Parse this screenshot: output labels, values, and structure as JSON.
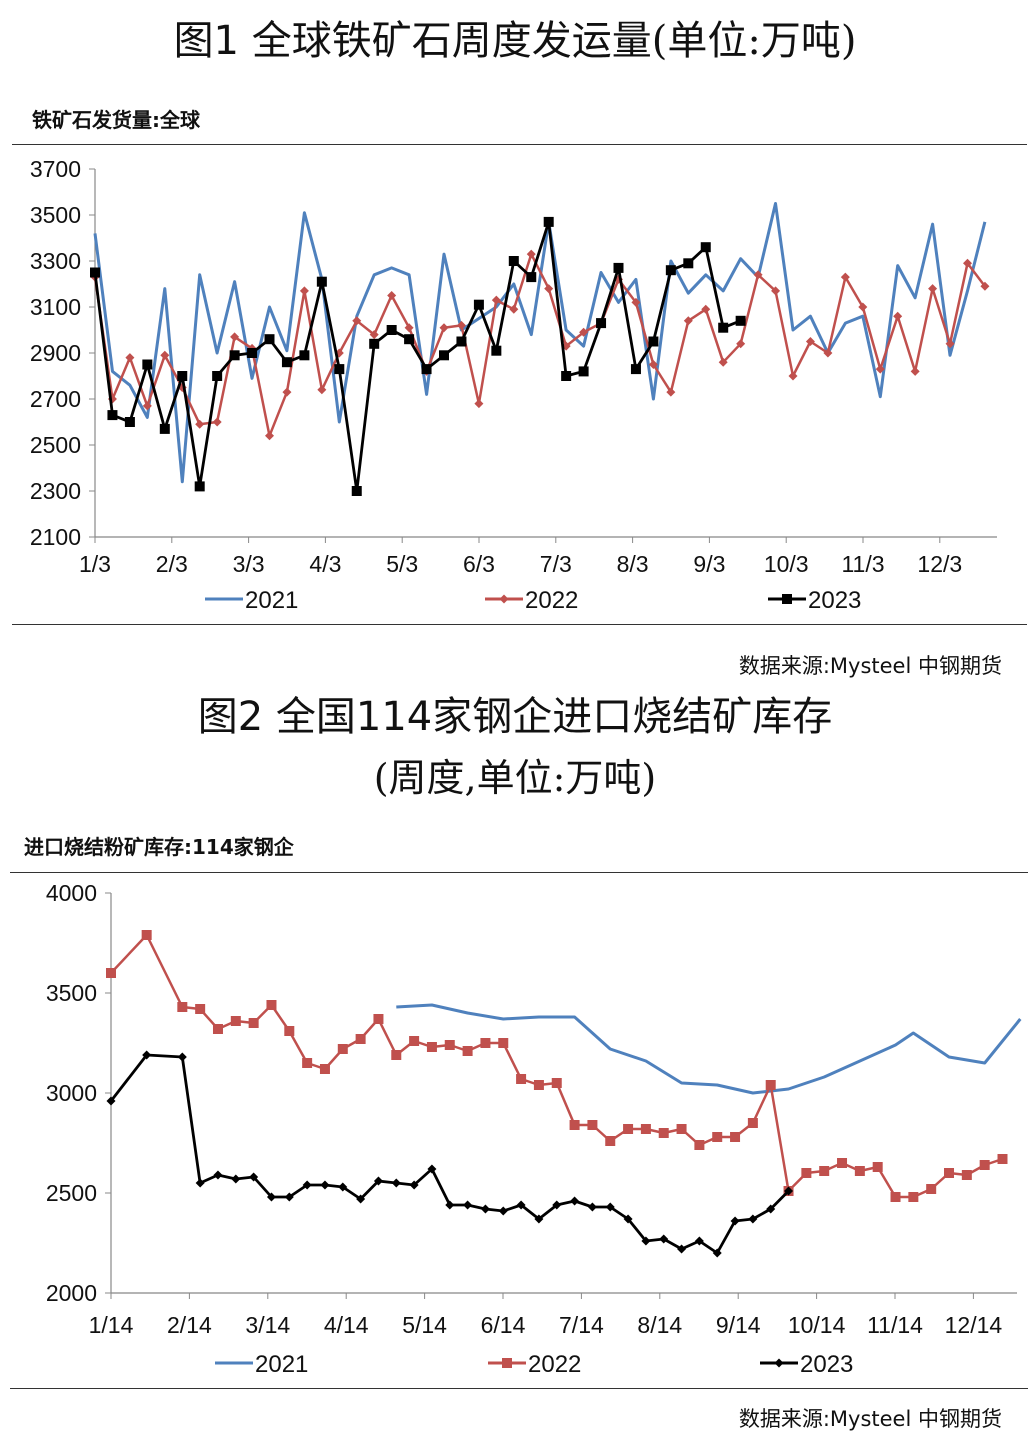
{
  "charts": [
    {
      "figure_title": "图1  全球铁矿石周度发运量",
      "figure_unit": "(单位:万吨)",
      "chart_label": "铁矿石发货量:全球",
      "source": "数据来源:Mysteel 中钢期货"
    },
    {
      "figure_title": "图2  全国114家钢企进口烧结矿库存",
      "figure_unit": "(周度,单位:万吨)",
      "chart_label": "进口烧结粉矿库存:114家钢企",
      "source": "数据来源:Mysteel 中钢期货"
    }
  ],
  "chart_data": [
    {
      "type": "line",
      "title": "图1 全球铁矿石周度发运量(单位:万吨)",
      "subtitle": "铁矿石发货量:全球",
      "x_tick_labels": [
        "1/3",
        "2/3",
        "3/3",
        "4/3",
        "5/3",
        "6/3",
        "7/3",
        "8/3",
        "9/3",
        "10/3",
        "11/3",
        "12/3"
      ],
      "x_unit": "week of year",
      "ylim": [
        2100,
        3700
      ],
      "y_ticks": [
        2100,
        2300,
        2500,
        2700,
        2900,
        3100,
        3300,
        3500,
        3700
      ],
      "grid": false,
      "legend_position": "bottom",
      "series": [
        {
          "name": "2021",
          "color": "#4f81bd",
          "marker": "none",
          "values": [
            3420,
            2820,
            2760,
            2620,
            3180,
            2340,
            3240,
            2900,
            3210,
            2790,
            3100,
            2910,
            3510,
            3220,
            2600,
            3060,
            3240,
            3270,
            3240,
            2720,
            3330,
            3000,
            3050,
            3100,
            3200,
            2980,
            3470,
            3000,
            2930,
            3250,
            3120,
            3220,
            2700,
            3300,
            3160,
            3240,
            3170,
            3310,
            3230,
            3550,
            3000,
            3060,
            2900,
            3030,
            3060,
            2710,
            3280,
            3140,
            3460,
            2890,
            3170,
            3470
          ]
        },
        {
          "name": "2022",
          "color": "#c0504d",
          "marker": "diamond",
          "values": [
            3230,
            2700,
            2880,
            2670,
            2890,
            2750,
            2590,
            2600,
            2970,
            2920,
            2540,
            2730,
            3170,
            2740,
            2900,
            3040,
            2980,
            3150,
            3010,
            2820,
            3010,
            3020,
            2680,
            3130,
            3090,
            3330,
            3180,
            2930,
            2990,
            3030,
            3220,
            3120,
            2850,
            2730,
            3040,
            3090,
            2860,
            2940,
            3240,
            3170,
            2800,
            2950,
            2900,
            3230,
            3100,
            2830,
            3060,
            2820,
            3180,
            2940,
            3290,
            3190
          ]
        },
        {
          "name": "2023",
          "color": "#000000",
          "marker": "square",
          "values": [
            3250,
            2630,
            2600,
            2850,
            2570,
            2800,
            2320,
            2800,
            2890,
            2900,
            2960,
            2860,
            2890,
            3210,
            2830,
            2300,
            2940,
            3000,
            2960,
            2830,
            2890,
            2950,
            3110,
            2910,
            3300,
            3230,
            3470,
            2800,
            2820,
            3030,
            3270,
            2830,
            2950,
            3260,
            3290,
            3360,
            3010,
            3040
          ]
        }
      ]
    },
    {
      "type": "line",
      "title": "图2 全国114家钢企进口烧结矿库存(周度,单位:万吨)",
      "subtitle": "进口烧结粉矿库存:114家钢企",
      "x_tick_labels": [
        "1/14",
        "2/14",
        "3/14",
        "4/14",
        "5/14",
        "6/14",
        "7/14",
        "8/14",
        "9/14",
        "10/14",
        "11/14",
        "12/14"
      ],
      "ylim": [
        2000,
        4000
      ],
      "y_ticks": [
        2000,
        2500,
        3000,
        3500,
        4000
      ],
      "grid": false,
      "legend_position": "bottom",
      "series": [
        {
          "name": "2021",
          "color": "#4f81bd",
          "marker": "none",
          "points": [
            [
              16,
              3430
            ],
            [
              18,
              3440
            ],
            [
              20,
              3400
            ],
            [
              22,
              3370
            ],
            [
              24,
              3380
            ],
            [
              26,
              3380
            ],
            [
              28,
              3220
            ],
            [
              30,
              3160
            ],
            [
              32,
              3050
            ],
            [
              34,
              3040
            ],
            [
              36,
              3000
            ],
            [
              38,
              3020
            ],
            [
              40,
              3080
            ],
            [
              42,
              3160
            ],
            [
              44,
              3240
            ],
            [
              45,
              3300
            ],
            [
              47,
              3180
            ],
            [
              49,
              3150
            ],
            [
              51,
              3370
            ]
          ]
        },
        {
          "name": "2022",
          "color": "#c0504d",
          "marker": "square",
          "values": [
            3600,
            null,
            3790,
            null,
            3430,
            3420,
            3320,
            3360,
            3350,
            3440,
            3310,
            3150,
            3120,
            3220,
            3270,
            3370,
            3190,
            3260,
            3230,
            3240,
            3210,
            3250,
            3250,
            3070,
            3040,
            3050,
            2840,
            2840,
            2760,
            2820,
            2820,
            2800,
            2820,
            2740,
            2780,
            2780,
            2850,
            3040,
            2510,
            2600,
            2610,
            2650,
            2610,
            2630,
            2480,
            2480,
            2520,
            2600,
            2590,
            2640,
            2670
          ]
        },
        {
          "name": "2023",
          "color": "#000000",
          "marker": "diamond",
          "values": [
            2960,
            null,
            3190,
            null,
            3180,
            2550,
            2590,
            2570,
            2580,
            2480,
            2480,
            2540,
            2540,
            2530,
            2470,
            2560,
            2550,
            2540,
            2620,
            2440,
            2440,
            2420,
            2410,
            2440,
            2370,
            2440,
            2460,
            2430,
            2430,
            2370,
            2260,
            2270,
            2220,
            2260,
            2200,
            2360,
            2370,
            2420,
            2510
          ]
        }
      ]
    }
  ]
}
